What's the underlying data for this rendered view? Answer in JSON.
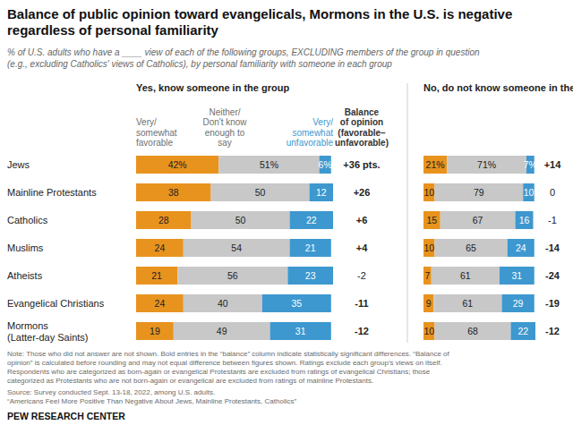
{
  "title": [
    "Balance of public opinion toward evangelicals, Mormons in the U.S. is negative",
    "regardless of personal familiarity"
  ],
  "subtitle": [
    "% of U.S. adults who have a ____ view of each of the following groups, EXCLUDING members of the group in question",
    "(e.g., excluding Catholics' views of Catholics), by personal familiarity with someone in each group"
  ],
  "notes": [
    "Note: Those who did not answer are not shown. Bold entries in the “balance” column indicate statistically significant differences. “Balance of",
    "opinion” is calculated before rounding and may not equal difference between figures shown. Ratings exclude each group’s views on itself.",
    "Respondents who are categorized as born-again or evangelical Protestants are excluded from ratings of evangelical Christians; those",
    "categorized as Protestants who are not born-again or evangelical are excluded from ratings of mainline Protestants."
  ],
  "source": "Source: Survey conducted Sept. 13-18, 2022, among U.S. adults.",
  "report": "“Americans Feel More Positive Than Negative About Jews, Mainline Protestants, Catholics”",
  "credit": "PEW RESEARCH CENTER",
  "chart_data": [
    {
      "type": "bar",
      "orientation": "horizontal",
      "stacked": true,
      "data_labels": true,
      "tick_labels": "y",
      "legend": "top",
      "title": "Yes, know someone in the group",
      "xlim": [
        0,
        100
      ],
      "categories": [
        "Jews",
        "Mainline Protestants",
        "Catholics",
        "Muslims",
        "Atheists",
        "Evangelical Christians",
        "Mormons\n(Latter-day Saints)"
      ],
      "series": [
        {
          "name": "Very/\nsomewhat\nfavorable",
          "color": "#e8931e",
          "values": [
            42,
            38,
            28,
            24,
            21,
            24,
            19
          ],
          "value_labels": [
            "42%",
            "38",
            "28",
            "24",
            "21",
            "24",
            "19"
          ]
        },
        {
          "name": "Neither/\nDon't know\nenough to\nsay",
          "color": "#c8c8c8",
          "values": [
            51,
            50,
            50,
            54,
            56,
            40,
            49
          ],
          "value_labels": [
            "51%",
            "50",
            "50",
            "54",
            "56",
            "40",
            "49"
          ]
        },
        {
          "name": "Very/\nsomewhat\nunfavorable",
          "color": "#3d98cf",
          "values": [
            6,
            12,
            22,
            21,
            23,
            35,
            31
          ],
          "value_labels": [
            "6%",
            "12",
            "22",
            "21",
            "23",
            "35",
            "31"
          ]
        }
      ],
      "balance": {
        "title": "Balance\nof opinion\n(favorable–\nunfavorable)",
        "values": [
          36,
          26,
          6,
          4,
          -2,
          -11,
          -12
        ],
        "value_labels": [
          "+36 pts.",
          "+26",
          "+6",
          "+4",
          "-2",
          "-11",
          "-12"
        ],
        "significant": [
          true,
          true,
          true,
          true,
          false,
          true,
          true
        ]
      }
    },
    {
      "type": "bar",
      "orientation": "horizontal",
      "stacked": true,
      "data_labels": true,
      "tick_labels": false,
      "title": "No, do not know someone in the group",
      "xlim": [
        0,
        100
      ],
      "series": [
        {
          "color": "#e8931e",
          "values": [
            21,
            10,
            15,
            10,
            7,
            9,
            10
          ],
          "value_labels": [
            "21%",
            "10",
            "15",
            "10",
            "7",
            "9",
            "10"
          ]
        },
        {
          "color": "#c8c8c8",
          "values": [
            71,
            79,
            67,
            65,
            61,
            61,
            68
          ],
          "value_labels": [
            "71%",
            "79",
            "67",
            "65",
            "61",
            "61",
            "68"
          ]
        },
        {
          "color": "#3d98cf",
          "values": [
            7,
            10,
            16,
            24,
            31,
            29,
            22
          ],
          "value_labels": [
            "7%",
            "10",
            "16",
            "24",
            "31",
            "29",
            "22"
          ]
        }
      ],
      "balance": {
        "values": [
          14,
          0,
          -1,
          -14,
          -24,
          -19,
          -12
        ],
        "value_labels": [
          "+14",
          "0",
          "-1",
          "-14",
          "-24",
          "-19",
          "-12"
        ],
        "significant": [
          true,
          false,
          false,
          true,
          true,
          true,
          true
        ]
      }
    }
  ]
}
